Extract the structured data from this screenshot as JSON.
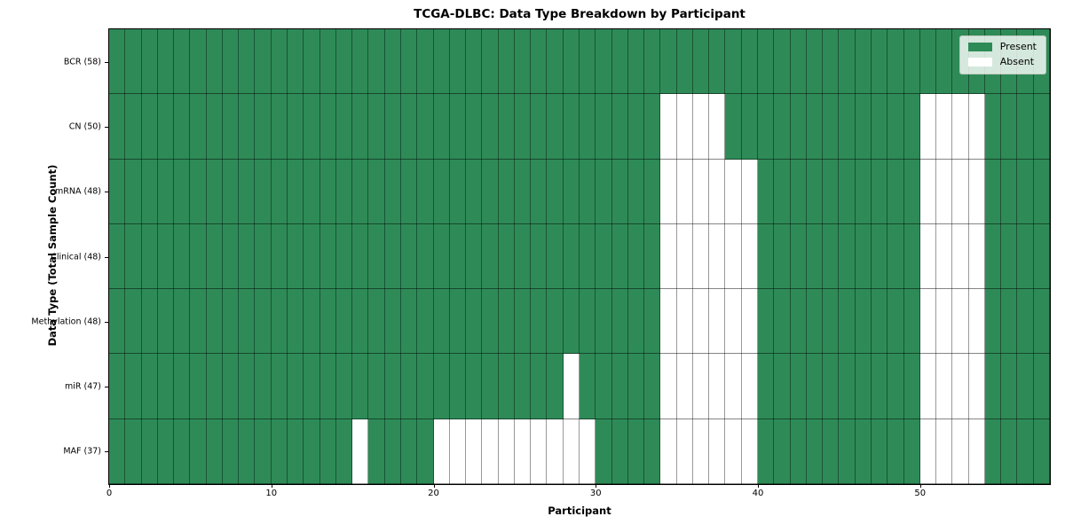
{
  "chart_data": {
    "type": "heatmap",
    "title": "TCGA-DLBC: Data Type Breakdown by Participant",
    "xlabel": "Participant",
    "ylabel": "Data Type (Total Sample Count)",
    "x_ticks": [
      0,
      10,
      20,
      30,
      40,
      50
    ],
    "x_range": [
      0,
      58
    ],
    "n_columns": 58,
    "colors": {
      "present": "#2e8b57",
      "absent": "#ffffff",
      "cell_edge": "rgba(0,0,0,0.45)"
    },
    "legend": {
      "position": "upper right",
      "entries": [
        {
          "label": "Present",
          "color": "#2e8b57"
        },
        {
          "label": "Absent",
          "color": "#ffffff"
        }
      ]
    },
    "rows": [
      {
        "label": "BCR (58)",
        "data_type": "BCR",
        "total": 58,
        "absent_participants": []
      },
      {
        "label": "CN (50)",
        "data_type": "CN",
        "total": 50,
        "absent_participants": [
          34,
          35,
          36,
          37,
          50,
          51,
          52,
          53
        ]
      },
      {
        "label": "mRNA (48)",
        "data_type": "mRNA",
        "total": 48,
        "absent_participants": [
          34,
          35,
          36,
          37,
          38,
          39,
          50,
          51,
          52,
          53
        ]
      },
      {
        "label": "Clinical (48)",
        "data_type": "Clinical",
        "total": 48,
        "absent_participants": [
          34,
          35,
          36,
          37,
          38,
          39,
          50,
          51,
          52,
          53
        ]
      },
      {
        "label": "Methylation (48)",
        "data_type": "Methylation",
        "total": 48,
        "absent_participants": [
          34,
          35,
          36,
          37,
          38,
          39,
          50,
          51,
          52,
          53
        ]
      },
      {
        "label": "miR (47)",
        "data_type": "miR",
        "total": 47,
        "absent_participants": [
          28,
          34,
          35,
          36,
          37,
          38,
          39,
          50,
          51,
          52,
          53
        ]
      },
      {
        "label": "MAF (37)",
        "data_type": "MAF",
        "total": 37,
        "absent_participants": [
          15,
          20,
          21,
          22,
          23,
          24,
          25,
          26,
          27,
          28,
          29,
          34,
          35,
          36,
          37,
          38,
          39,
          50,
          51,
          52,
          53
        ]
      }
    ]
  }
}
